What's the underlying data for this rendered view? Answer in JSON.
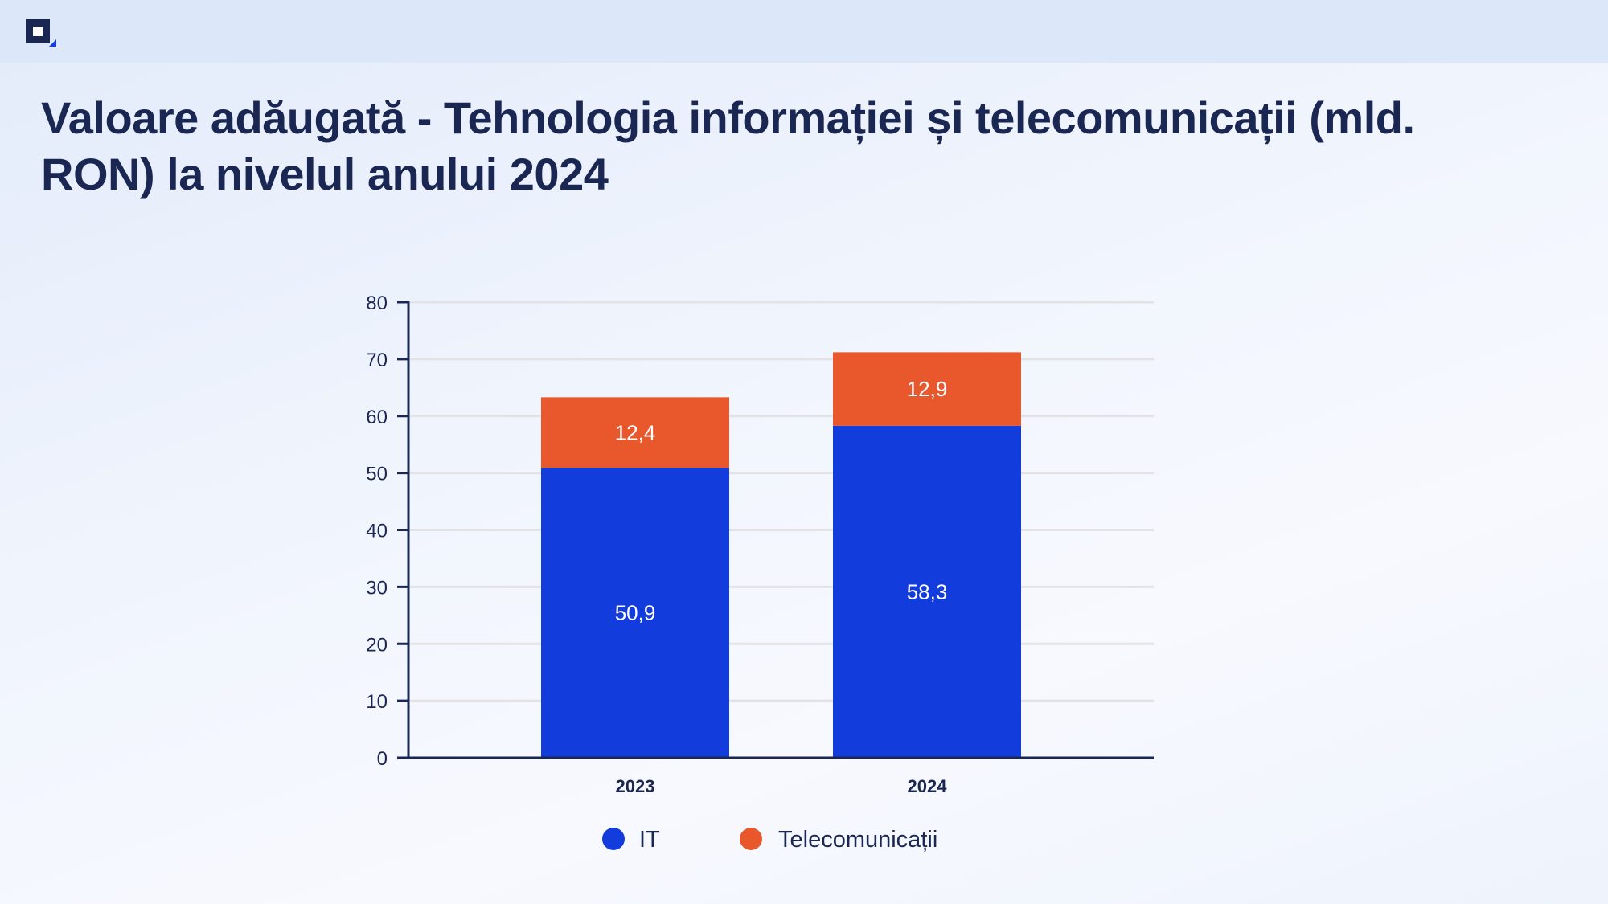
{
  "header": {
    "logo_icon": "square-logo-icon",
    "title": "Valoare adăugată - Tehnologia informației și telecomunicații (mld. RON) la nivelul anului 2024"
  },
  "colors": {
    "it": "#133cdc",
    "telecom": "#e8582c",
    "axis": "#1b2753",
    "grid": "#e3e3e6"
  },
  "chart_data": {
    "type": "bar",
    "stacked": true,
    "categories": [
      "2023",
      "2024"
    ],
    "series": [
      {
        "name": "IT",
        "values": [
          50.9,
          58.3
        ],
        "labels": [
          "50,9",
          "58,3"
        ]
      },
      {
        "name": "Telecomunicații",
        "values": [
          12.4,
          12.9
        ],
        "labels": [
          "12,4",
          "12,9"
        ]
      }
    ],
    "yticks": [
      "0",
      "10",
      "20",
      "30",
      "40",
      "50",
      "60",
      "70",
      "80"
    ],
    "ylim": [
      0,
      80
    ],
    "grid": true,
    "legend": "bottom",
    "title": "Valoare adăugată - Tehnologia informației și telecomunicații (mld. RON) la nivelul anului 2024",
    "xlabel": "",
    "ylabel": ""
  }
}
